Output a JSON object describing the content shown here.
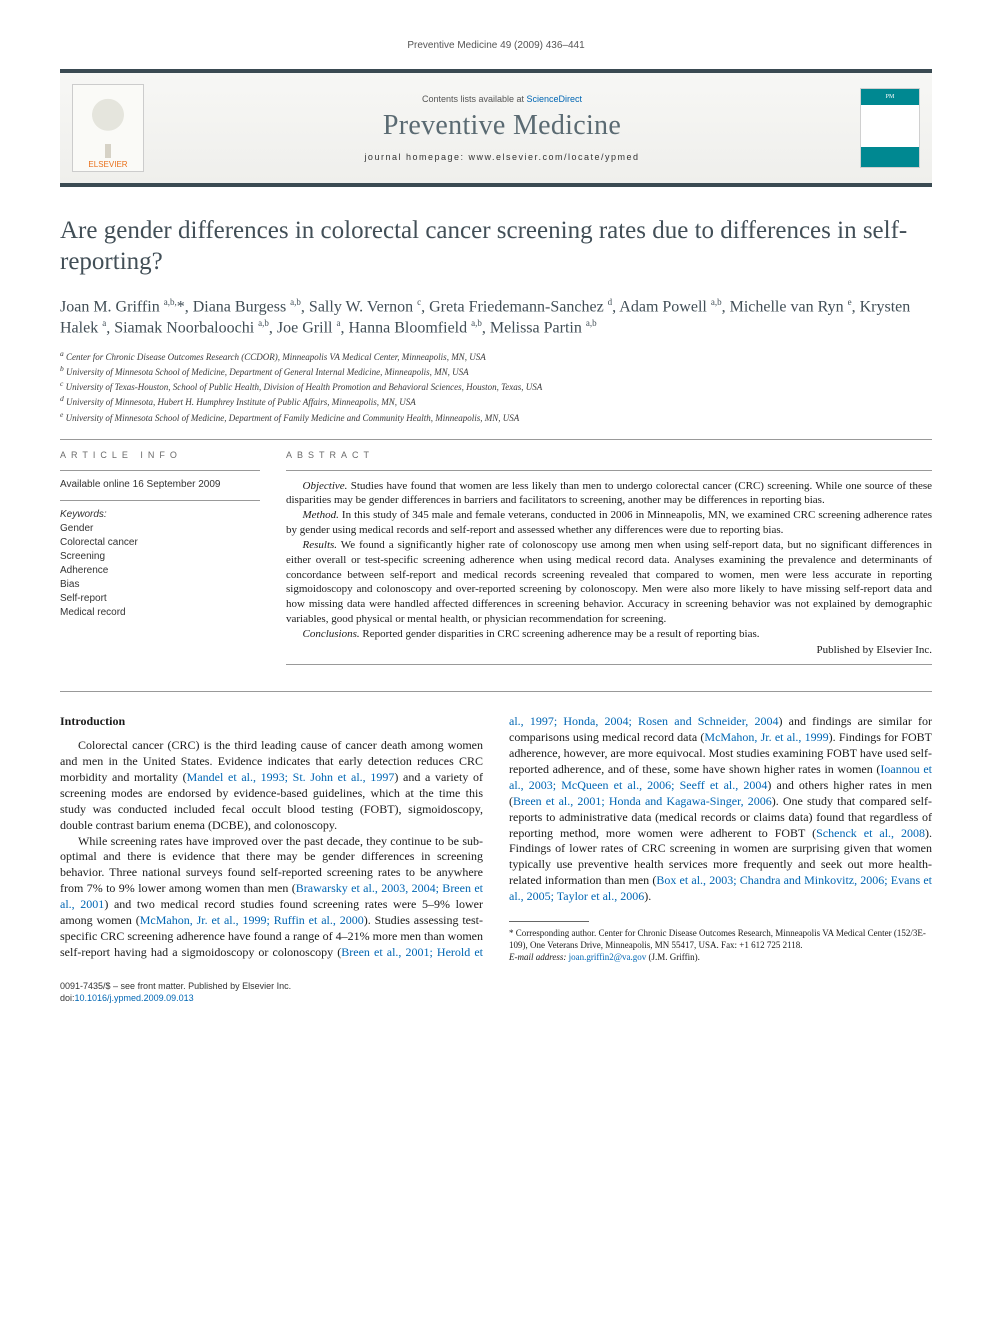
{
  "running_head": "Preventive Medicine 49 (2009) 436–441",
  "masthead": {
    "contents_line_pre": "Contents lists available at ",
    "contents_link": "ScienceDirect",
    "journal_name": "Preventive Medicine",
    "homepage_label": "journal homepage: ",
    "homepage_url": "www.elsevier.com/locate/ypmed",
    "publisher_logo_text": "ELSEVIER",
    "cover_badge": "PM"
  },
  "article": {
    "title": "Are gender differences in colorectal cancer screening rates due to differences in self-reporting?",
    "authors_html": "Joan M. Griffin <sup>a,b,</sup>*<sup></sup>, Diana Burgess <sup>a,b</sup>, Sally W. Vernon <sup>c</sup>, Greta Friedemann-Sanchez <sup>d</sup>, Adam Powell <sup>a,b</sup>, Michelle van Ryn <sup>e</sup>, Krysten Halek <sup>a</sup>, Siamak Noorbaloochi <sup>a,b</sup>, Joe Grill <sup>a</sup>, Hanna Bloomfield <sup>a,b</sup>, Melissa Partin <sup>a,b</sup>",
    "affiliations": [
      "a  Center for Chronic Disease Outcomes Research (CCDOR), Minneapolis VA Medical Center, Minneapolis, MN, USA",
      "b  University of Minnesota School of Medicine, Department of General Internal Medicine, Minneapolis, MN, USA",
      "c  University of Texas-Houston, School of Public Health, Division of Health Promotion and Behavioral Sciences, Houston, Texas, USA",
      "d  University of Minnesota, Hubert H. Humphrey Institute of Public Affairs, Minneapolis, MN, USA",
      "e  University of Minnesota School of Medicine, Department of Family Medicine and Community Health, Minneapolis, MN, USA"
    ]
  },
  "article_info": {
    "heading": "ARTICLE INFO",
    "available": "Available online 16 September 2009",
    "keywords_heading": "Keywords:",
    "keywords": [
      "Gender",
      "Colorectal cancer",
      "Screening",
      "Adherence",
      "Bias",
      "Self-report",
      "Medical record"
    ]
  },
  "abstract": {
    "heading": "ABSTRACT",
    "paras": [
      {
        "lead": "Objective.",
        "text": " Studies have found that women are less likely than men to undergo colorectal cancer (CRC) screening. While one source of these disparities may be gender differences in barriers and facilitators to screening, another may be differences in reporting bias."
      },
      {
        "lead": "Method.",
        "text": " In this study of 345 male and female veterans, conducted in 2006 in Minneapolis, MN, we examined CRC screening adherence rates by gender using medical records and self-report and assessed whether any differences were due to reporting bias."
      },
      {
        "lead": "Results.",
        "text": " We found a significantly higher rate of colonoscopy use among men when using self-report data, but no significant differences in either overall or test-specific screening adherence when using medical record data. Analyses examining the prevalence and determinants of concordance between self-report and medical records screening revealed that compared to women, men were less accurate in reporting sigmoidoscopy and colonoscopy and over-reported screening by colonoscopy. Men were also more likely to have missing self-report data and how missing data were handled affected differences in screening behavior. Accuracy in screening behavior was not explained by demographic variables, good physical or mental health, or physician recommendation for screening."
      },
      {
        "lead": "Conclusions.",
        "text": " Reported gender disparities in CRC screening adherence may be a result of reporting bias."
      }
    ],
    "published_by": "Published by Elsevier Inc."
  },
  "body": {
    "intro_heading": "Introduction",
    "p1_pre": "Colorectal cancer (CRC) is the third leading cause of cancer death among women and men in the United States. Evidence indicates that early detection reduces CRC morbidity and mortality (",
    "p1_cite1": "Mandel et al., 1993; St. John et al., 1997",
    "p1_post": ") and a variety of screening modes are endorsed by evidence-based guidelines, which at the time this study was conducted included fecal occult blood testing (FOBT), sigmoidoscopy, double contrast barium enema (DCBE), and colonoscopy.",
    "p2_pre": "While screening rates have improved over the past decade, they continue to be sub-optimal and there is evidence that there may be gender differences in screening behavior. Three national surveys found self-reported screening rates to be anywhere from 7% to 9% lower among women than men (",
    "p2_cite1": "Brawarsky et al., 2003, 2004; Breen et al., 2001",
    "p2_mid1": ") and two medical record studies found screening rates were 5–9% lower among women (",
    "p2_cite2": "McMahon, Jr. et al., 1999; Ruffin et al., 2000",
    "p2_mid2": "). Studies assessing test-specific CRC screening adherence have found a range of 4–21% more men than women self-report having had a sigmoidoscopy or colonoscopy (",
    "p2_cite3": "Breen et al., 2001; Herold et al., 1997; Honda, 2004; Rosen and Schneider, 2004",
    "p2_mid3": ") and findings are similar for comparisons using medical record data (",
    "p2_cite4": "McMahon, Jr. et al., 1999",
    "p2_mid4": "). Findings for FOBT adherence, however, are more equivocal. Most studies examining FOBT have used self-reported adherence, and of these, some have shown higher rates in women (",
    "p2_cite5": "Ioannou et al., 2003; McQueen et al., 2006; Seeff et al., 2004",
    "p2_mid5": ") and others higher rates in men (",
    "p2_cite6": "Breen et al., 2001; Honda and Kagawa-Singer, 2006",
    "p2_mid6": "). One study that compared self-reports to administrative data (medical records or claims data) found that regardless of reporting method, more women were adherent to FOBT (",
    "p2_cite7": "Schenck et al., 2008",
    "p2_mid7": "). Findings of lower rates of CRC screening in women are surprising given that women typically use preventive health services more frequently and seek out more health-related information than men (",
    "p2_cite8": "Box et al., 2003; Chandra and Minkovitz, 2006; Evans et al., 2005; Taylor et al., 2006",
    "p2_post": ")."
  },
  "footnotes": {
    "corr_label": "* Corresponding author. ",
    "corr_text": "Center for Chronic Disease Outcomes Research, Minneapolis VA Medical Center (152/3E-109), One Veterans Drive, Minneapolis, MN 55417, USA. Fax: +1 612 725 2118.",
    "email_label": "E-mail address: ",
    "email": "joan.griffin2@va.gov",
    "email_paren": " (J.M. Griffin)."
  },
  "bottom": {
    "line1": "0091-7435/$ – see front matter. Published by Elsevier Inc.",
    "doi_label": "doi:",
    "doi": "10.1016/j.ypmed.2009.09.013"
  },
  "colors": {
    "rule": "#3a4a52",
    "link": "#0066b3",
    "heading": "#424f57",
    "teal": "#008891",
    "elsevier_orange": "#e9711c"
  },
  "typography": {
    "title_pt": 25,
    "author_pt": 16,
    "body_pt": 12,
    "abstract_pt": 11,
    "fine_pt": 9
  }
}
